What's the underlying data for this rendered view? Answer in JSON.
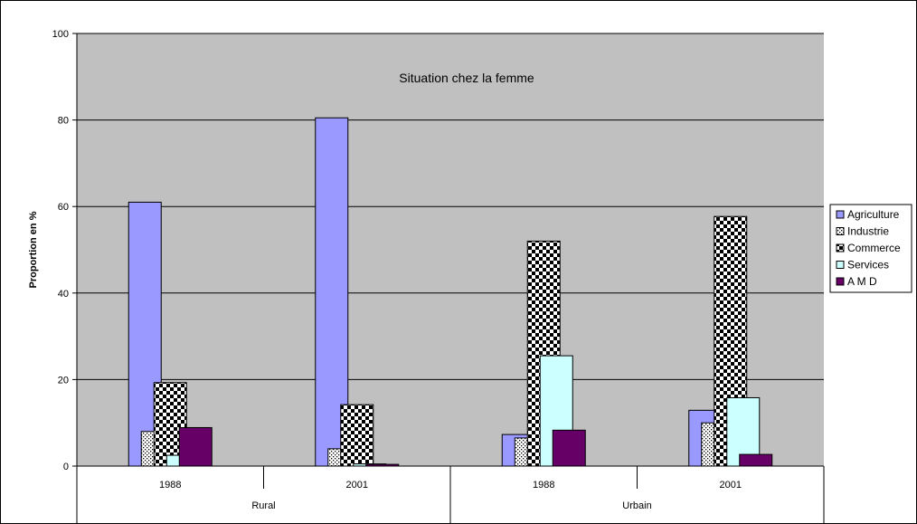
{
  "chart_data": {
    "type": "bar",
    "title": "Situation chez la femme",
    "ylabel": "Proportion en %",
    "ylim": [
      0,
      100
    ],
    "yticks": [
      0,
      20,
      40,
      60,
      80,
      100
    ],
    "grid": true,
    "legend_position": "right",
    "groups": [
      {
        "label": "Rural",
        "categories": [
          "1988",
          "2001"
        ]
      },
      {
        "label": "Urbain",
        "categories": [
          "1988",
          "2001"
        ]
      }
    ],
    "categories": [
      "1988",
      "2001",
      "1988",
      "2001"
    ],
    "series": [
      {
        "name": "Agriculture",
        "color": "#9999ff",
        "pattern": "solid",
        "values": [
          61,
          80.5,
          7.3,
          12.9
        ]
      },
      {
        "name": "Industrie",
        "color": "#ffffff",
        "pattern": "dots",
        "values": [
          8,
          4,
          6.5,
          10
        ]
      },
      {
        "name": "Commerce",
        "color": "#000000",
        "pattern": "checker",
        "values": [
          19.3,
          14.2,
          52,
          57.7
        ]
      },
      {
        "name": "Services",
        "color": "#ccffff",
        "pattern": "solid",
        "values": [
          2.5,
          0.5,
          25.5,
          15.8
        ]
      },
      {
        "name": "A M D",
        "color": "#660066",
        "pattern": "solid",
        "values": [
          8.9,
          0.4,
          8.3,
          2.7
        ]
      }
    ]
  }
}
